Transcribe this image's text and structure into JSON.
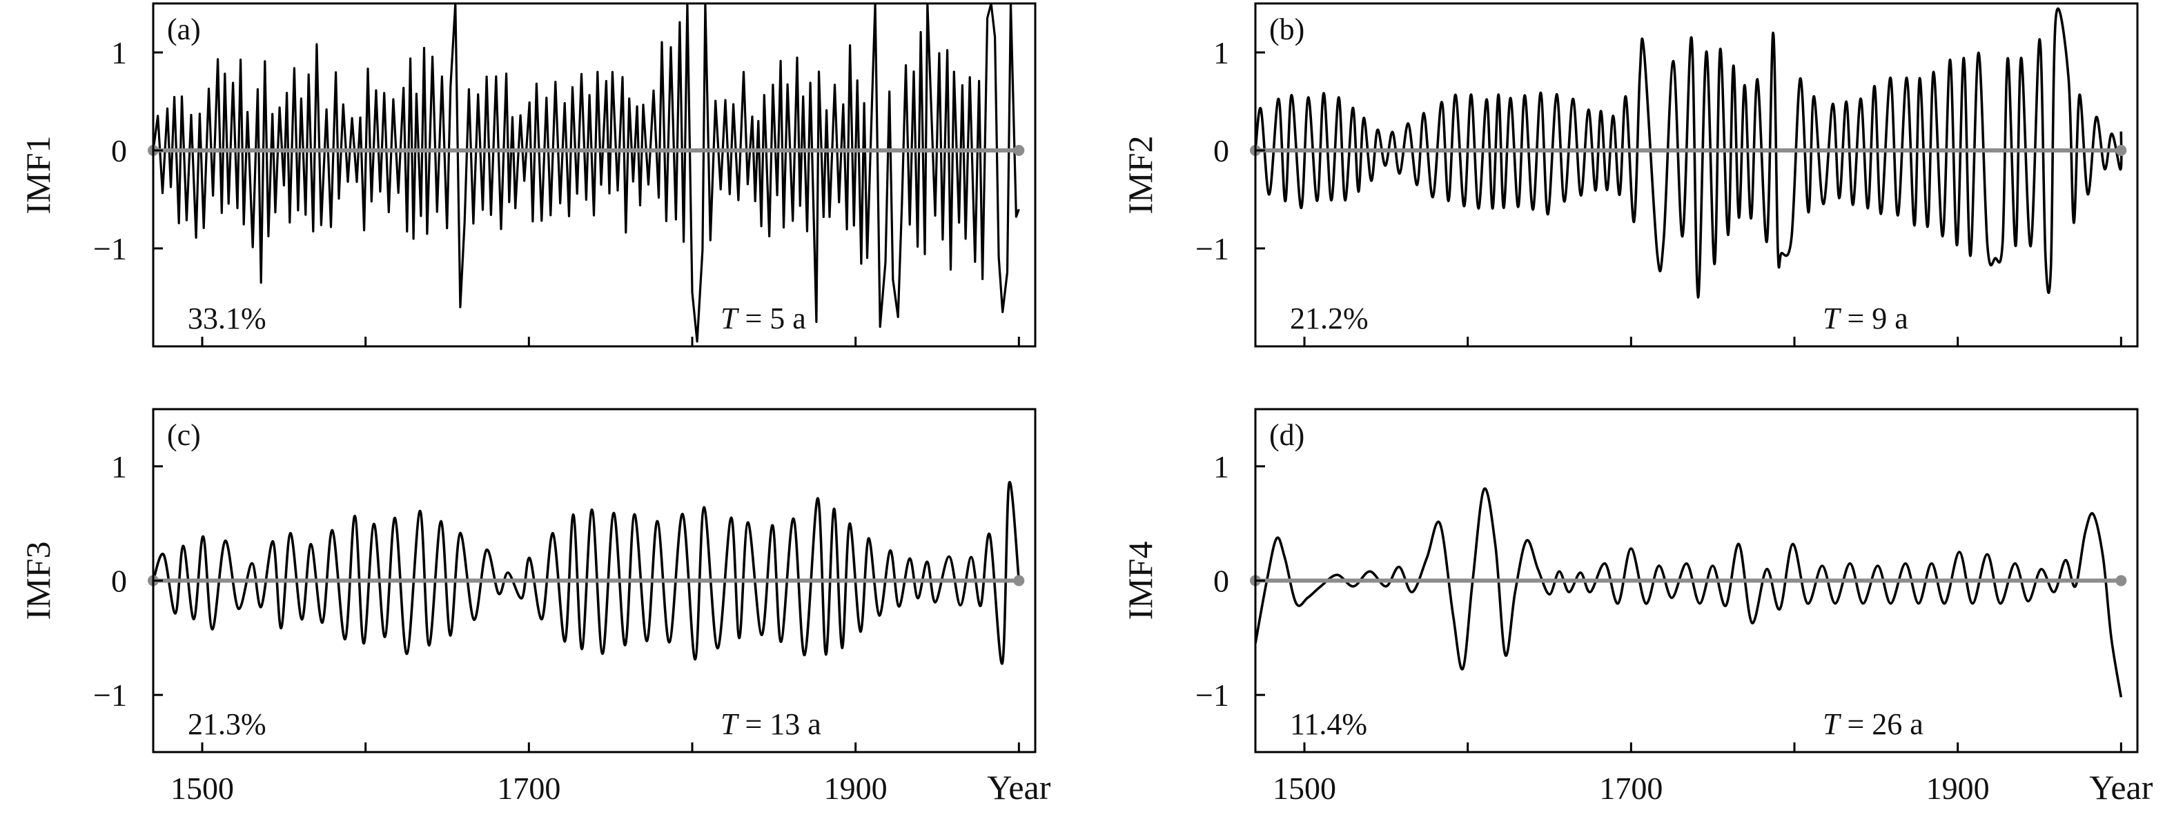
{
  "chart_data": [
    {
      "type": "line",
      "panel": "(a)",
      "ylabel": "IMF1",
      "xlabel": "Year",
      "percent": "33.1%",
      "period_var": "T",
      "period_rest": " = 5 a",
      "xlim": [
        1470,
        2010
      ],
      "ylim": [
        -2,
        1.5
      ],
      "xticks": [
        "1500",
        "1700",
        "1900"
      ],
      "yticks": [
        "1",
        "0",
        "−1"
      ],
      "approx_period_years": 5,
      "envelope": [
        [
          1470,
          0.7
        ],
        [
          1490,
          0.9
        ],
        [
          1510,
          1.0
        ],
        [
          1530,
          1.0
        ],
        [
          1550,
          0.8
        ],
        [
          1570,
          1.1
        ],
        [
          1590,
          0.9
        ],
        [
          1610,
          0.8
        ],
        [
          1630,
          1.0
        ],
        [
          1650,
          1.3
        ],
        [
          1670,
          0.9
        ],
        [
          1690,
          0.8
        ],
        [
          1710,
          0.8
        ],
        [
          1730,
          0.9
        ],
        [
          1750,
          0.9
        ],
        [
          1770,
          0.9
        ],
        [
          1790,
          1.4
        ],
        [
          1810,
          1.2
        ],
        [
          1830,
          0.8
        ],
        [
          1850,
          0.9
        ],
        [
          1870,
          1.0
        ],
        [
          1890,
          1.2
        ],
        [
          1910,
          1.4
        ],
        [
          1930,
          1.3
        ],
        [
          1950,
          1.2
        ],
        [
          1970,
          1.4
        ],
        [
          1990,
          1.5
        ],
        [
          2010,
          1.5
        ]
      ],
      "peaks": [
        [
          1536,
          -1.35
        ],
        [
          1655,
          1.5
        ],
        [
          1658,
          -1.6
        ],
        [
          1797,
          1.5
        ],
        [
          1800,
          -1.45
        ],
        [
          1803,
          -1.95
        ],
        [
          1808,
          1.5
        ],
        [
          1876,
          -1.75
        ],
        [
          1912,
          1.5
        ],
        [
          1915,
          -1.8
        ],
        [
          1926,
          -1.7
        ],
        [
          1944,
          1.5
        ],
        [
          1983,
          1.5
        ],
        [
          1990,
          -1.65
        ],
        [
          1995,
          1.5
        ],
        [
          2000,
          -0.6
        ]
      ]
    },
    {
      "type": "line",
      "panel": "(b)",
      "ylabel": "IMF2",
      "xlabel": "Year",
      "percent": "21.2%",
      "period_var": "T",
      "period_rest": " = 9 a",
      "xlim": [
        1470,
        2010
      ],
      "ylim": [
        -2,
        1.5
      ],
      "xticks": [
        "1500",
        "1700",
        "1900"
      ],
      "yticks": [
        "1",
        "0",
        "−1"
      ],
      "approx_period_years": 9,
      "envelope": [
        [
          1470,
          0.4
        ],
        [
          1490,
          0.6
        ],
        [
          1510,
          0.6
        ],
        [
          1530,
          0.5
        ],
        [
          1550,
          0.15
        ],
        [
          1570,
          0.4
        ],
        [
          1590,
          0.6
        ],
        [
          1610,
          0.6
        ],
        [
          1630,
          0.6
        ],
        [
          1650,
          0.7
        ],
        [
          1670,
          0.5
        ],
        [
          1690,
          0.4
        ],
        [
          1710,
          1.0
        ],
        [
          1730,
          1.0
        ],
        [
          1750,
          1.2
        ],
        [
          1770,
          0.7
        ],
        [
          1790,
          1.1
        ],
        [
          1810,
          0.6
        ],
        [
          1830,
          0.5
        ],
        [
          1850,
          0.7
        ],
        [
          1870,
          0.8
        ],
        [
          1890,
          0.9
        ],
        [
          1910,
          1.1
        ],
        [
          1930,
          1.0
        ],
        [
          1950,
          1.2
        ],
        [
          1970,
          0.8
        ],
        [
          1990,
          0.2
        ],
        [
          2000,
          0.2
        ]
      ],
      "peaks": [
        [
          1708,
          1.0
        ],
        [
          1716,
          -1.05
        ],
        [
          1737,
          1.15
        ],
        [
          1741,
          -1.5
        ],
        [
          1787,
          1.2
        ],
        [
          1792,
          -1.05
        ],
        [
          1923,
          -1.1
        ],
        [
          1957,
          -1.2
        ],
        [
          1960,
          1.35
        ]
      ]
    },
    {
      "type": "line",
      "panel": "(c)",
      "ylabel": "IMF3",
      "xlabel": "Year",
      "percent": "21.3%",
      "period_var": "T",
      "period_rest": " = 13 a",
      "xlim": [
        1470,
        2010
      ],
      "ylim": [
        -1.5,
        1.5
      ],
      "xticks": [
        "1500",
        "1700",
        "1900"
      ],
      "yticks": [
        "1",
        "0",
        "−1"
      ],
      "approx_period_years": 13,
      "envelope": [
        [
          1470,
          0.2
        ],
        [
          1490,
          0.35
        ],
        [
          1510,
          0.45
        ],
        [
          1530,
          0.15
        ],
        [
          1550,
          0.45
        ],
        [
          1570,
          0.35
        ],
        [
          1590,
          0.6
        ],
        [
          1610,
          0.55
        ],
        [
          1630,
          0.7
        ],
        [
          1650,
          0.55
        ],
        [
          1670,
          0.35
        ],
        [
          1685,
          0.05
        ],
        [
          1700,
          0.2
        ],
        [
          1720,
          0.55
        ],
        [
          1740,
          0.7
        ],
        [
          1760,
          0.65
        ],
        [
          1780,
          0.55
        ],
        [
          1800,
          0.7
        ],
        [
          1820,
          0.6
        ],
        [
          1840,
          0.5
        ],
        [
          1860,
          0.6
        ],
        [
          1880,
          0.78
        ],
        [
          1900,
          0.5
        ],
        [
          1920,
          0.3
        ],
        [
          1940,
          0.15
        ],
        [
          1960,
          0.25
        ],
        [
          1975,
          0.2
        ],
        [
          1990,
          0.75
        ],
        [
          2000,
          0.8
        ]
      ],
      "peaks": [
        [
          1994,
          0.85
        ],
        [
          2000,
          0.0
        ]
      ]
    },
    {
      "type": "line",
      "panel": "(d)",
      "ylabel": "IMF4",
      "xlabel": "Year",
      "percent": "11.4%",
      "period_var": "T",
      "period_rest": " = 26 a",
      "xlim": [
        1470,
        2010
      ],
      "ylim": [
        -1.5,
        1.5
      ],
      "xticks": [
        "1500",
        "1700",
        "1900"
      ],
      "yticks": [
        "1",
        "0",
        "−1"
      ],
      "approx_period_years": 26,
      "points": [
        [
          1470,
          -0.55
        ],
        [
          1477,
          0.0
        ],
        [
          1483,
          0.37
        ],
        [
          1488,
          0.2
        ],
        [
          1495,
          -0.2
        ],
        [
          1502,
          -0.15
        ],
        [
          1510,
          -0.05
        ],
        [
          1520,
          0.05
        ],
        [
          1530,
          -0.05
        ],
        [
          1540,
          0.08
        ],
        [
          1550,
          -0.05
        ],
        [
          1558,
          0.12
        ],
        [
          1566,
          -0.1
        ],
        [
          1575,
          0.2
        ],
        [
          1583,
          0.5
        ],
        [
          1591,
          -0.3
        ],
        [
          1597,
          -0.77
        ],
        [
          1603,
          0.0
        ],
        [
          1610,
          0.8
        ],
        [
          1617,
          0.3
        ],
        [
          1623,
          -0.65
        ],
        [
          1629,
          -0.1
        ],
        [
          1636,
          0.35
        ],
        [
          1643,
          0.1
        ],
        [
          1650,
          -0.12
        ],
        [
          1656,
          0.08
        ],
        [
          1662,
          -0.1
        ],
        [
          1669,
          0.07
        ],
        [
          1675,
          -0.1
        ],
        [
          1684,
          0.15
        ],
        [
          1692,
          -0.2
        ],
        [
          1700,
          0.28
        ],
        [
          1709,
          -0.2
        ],
        [
          1717,
          0.13
        ],
        [
          1725,
          -0.15
        ],
        [
          1734,
          0.15
        ],
        [
          1742,
          -0.2
        ],
        [
          1750,
          0.13
        ],
        [
          1758,
          -0.22
        ],
        [
          1766,
          0.32
        ],
        [
          1774,
          -0.37
        ],
        [
          1783,
          0.1
        ],
        [
          1791,
          -0.25
        ],
        [
          1799,
          0.32
        ],
        [
          1808,
          -0.2
        ],
        [
          1817,
          0.13
        ],
        [
          1825,
          -0.2
        ],
        [
          1834,
          0.15
        ],
        [
          1842,
          -0.2
        ],
        [
          1851,
          0.13
        ],
        [
          1859,
          -0.2
        ],
        [
          1868,
          0.15
        ],
        [
          1876,
          -0.2
        ],
        [
          1884,
          0.15
        ],
        [
          1892,
          -0.2
        ],
        [
          1901,
          0.25
        ],
        [
          1909,
          -0.2
        ],
        [
          1918,
          0.23
        ],
        [
          1926,
          -0.2
        ],
        [
          1935,
          0.15
        ],
        [
          1943,
          -0.18
        ],
        [
          1951,
          0.1
        ],
        [
          1959,
          -0.1
        ],
        [
          1966,
          0.18
        ],
        [
          1972,
          -0.05
        ],
        [
          1978,
          0.42
        ],
        [
          1983,
          0.58
        ],
        [
          1989,
          0.2
        ],
        [
          1994,
          -0.5
        ],
        [
          2000,
          -1.02
        ]
      ]
    }
  ]
}
